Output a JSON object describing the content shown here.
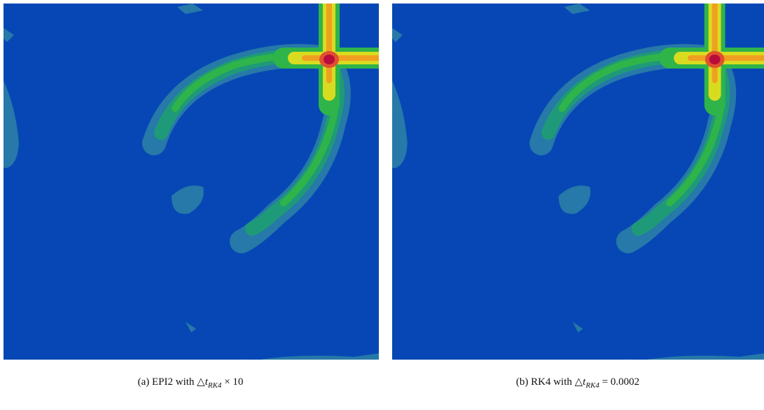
{
  "panels": [
    {
      "label": "(a)",
      "caption": "EPI2 with",
      "delta": "△",
      "var": "t",
      "subscript": "RK4",
      "suffix": "× 10"
    },
    {
      "label": "(b)",
      "caption": "RK4 with",
      "delta": "△",
      "var": "t",
      "subscript": "RK4",
      "suffix": "= 0.0002"
    }
  ]
}
